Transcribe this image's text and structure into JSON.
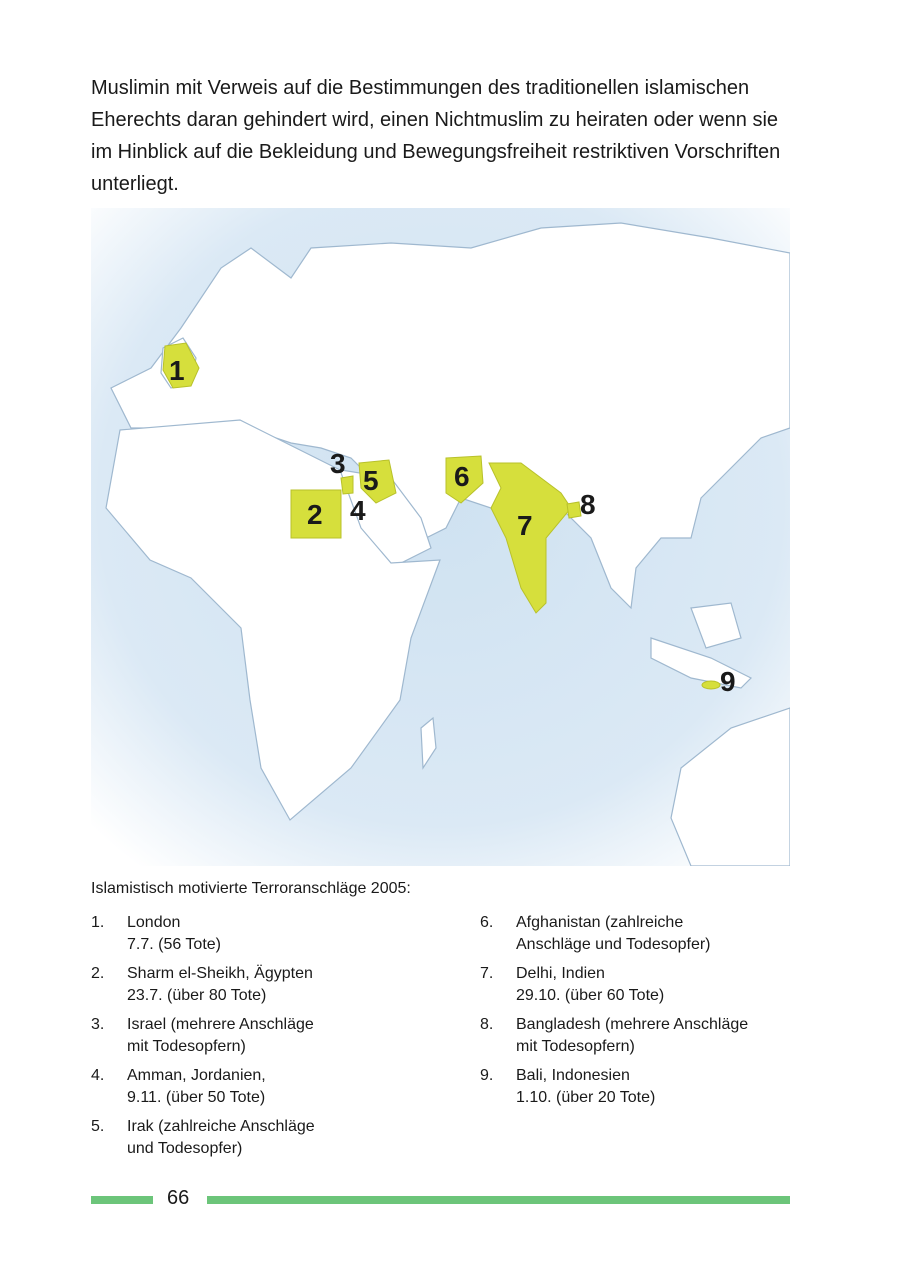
{
  "intro_text": "Muslimin mit Verweis auf die Bestimmungen des traditionellen islamischen Eherechts daran gehindert wird, einen Nichtmuslim zu heiraten oder wenn sie im Hinblick auf die Bekleidung und Bewegungsfreiheit restriktiven Vorschriften unterliegt.",
  "map": {
    "highlight_color": "#d6df3c",
    "markers": [
      "1",
      "2",
      "3",
      "4",
      "5",
      "6",
      "7",
      "8",
      "9"
    ]
  },
  "caption": "Islamistisch motivierte Terroranschläge 2005:",
  "list_left": [
    {
      "n": "1.",
      "text": "London\n7.7. (56 Tote)"
    },
    {
      "n": "2.",
      "text": "Sharm el-Sheikh, Ägypten\n23.7. (über 80 Tote)"
    },
    {
      "n": "3.",
      "text": "Israel  (mehrere Anschläge\nmit Todesopfern)"
    },
    {
      "n": "4.",
      "text": "Amman, Jordanien,\n9.11. (über 50 Tote)"
    },
    {
      "n": "5.",
      "text": "Irak (zahlreiche Anschläge\nund Todesopfer)"
    }
  ],
  "list_right": [
    {
      "n": "6.",
      "text": "Afghanistan (zahlreiche\nAnschläge und Todesopfer)"
    },
    {
      "n": "7.",
      "text": "Delhi, Indien\n29.10.  (über 60 Tote)"
    },
    {
      "n": "8.",
      "text": "Bangladesh (mehrere Anschläge\nmit Todesopfern)"
    },
    {
      "n": "9.",
      "text": "Bali, Indonesien\n1.10.  (über 20 Tote)"
    }
  ],
  "page_number": "66",
  "footer_color": "#6cc57a"
}
